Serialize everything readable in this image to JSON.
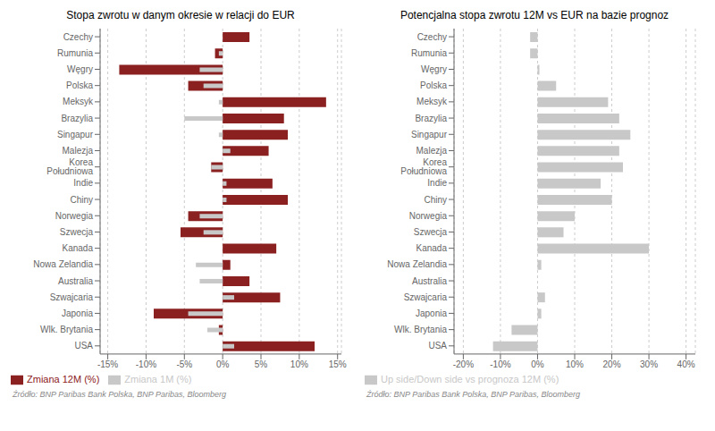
{
  "chart_data": [
    {
      "type": "bar",
      "orientation": "horizontal",
      "title": "Stopa zwrotu w danym okresie w relacji do EUR",
      "categories": [
        "Czechy",
        "Rumunia",
        "Węgry",
        "Polska",
        "Meksyk",
        "Brazylia",
        "Singapur",
        "Malezja",
        "Korea Południowa",
        "Indie",
        "Chiny",
        "Norwegia",
        "Szwecja",
        "Kanada",
        "Nowa Zelandia",
        "Australia",
        "Szwajcaria",
        "Japonia",
        "Wlk. Brytania",
        "USA"
      ],
      "series": [
        {
          "name": "Zmiana 12M (%)",
          "color": "#8b2020",
          "values": [
            3.5,
            -1.0,
            -13.5,
            -4.5,
            13.5,
            8.0,
            8.5,
            6.0,
            -1.5,
            6.5,
            8.5,
            -4.5,
            -5.5,
            7.0,
            1.0,
            3.5,
            7.5,
            -9.0,
            -0.5,
            12.0
          ]
        },
        {
          "name": "Zmiana 1M (%)",
          "color": "#c8c8c8",
          "values": [
            0.0,
            -0.5,
            -3.0,
            -2.5,
            -0.5,
            -5.0,
            -0.5,
            1.0,
            -1.5,
            0.5,
            0.5,
            -3.0,
            -2.5,
            0.0,
            -3.5,
            -3.0,
            1.5,
            -4.5,
            -2.0,
            1.5
          ]
        }
      ],
      "xlim": [
        -16,
        15.5
      ],
      "xticks": [
        {
          "value": -15,
          "label": "-15%"
        },
        {
          "value": -10,
          "label": "-10%"
        },
        {
          "value": -5,
          "label": "-5%"
        },
        {
          "value": 0,
          "label": "0%"
        },
        {
          "value": 5,
          "label": "5%"
        },
        {
          "value": 10,
          "label": "10%"
        },
        {
          "value": 15,
          "label": "15%"
        }
      ],
      "grid": true,
      "legend": "bottom",
      "annotations": [
        "Źródło: BNP Paribas Bank Polska, BNP Paribas, Bloomberg"
      ]
    },
    {
      "type": "bar",
      "orientation": "horizontal",
      "title": "Potencjalna stopa zwrotu 12M vs EUR na bazie prognoz",
      "categories": [
        "Czechy",
        "Rumunia",
        "Węgry",
        "Polska",
        "Meksyk",
        "Brazylia",
        "Singapur",
        "Malezja",
        "Korea Południowa",
        "Indie",
        "Chiny",
        "Norwegia",
        "Szwecja",
        "Kanada",
        "Nowa Zelandia",
        "Australia",
        "Szwajcaria",
        "Japonia",
        "Wlk. Brytania",
        "USA"
      ],
      "series": [
        {
          "name": "Up side/Down side vs prognoza 12M (%)",
          "color": "#c8c8c8",
          "values": [
            -2.0,
            -2.0,
            0.5,
            5.0,
            19.0,
            22.0,
            25.0,
            22.0,
            23.0,
            17.0,
            20.0,
            10.0,
            7.0,
            30.0,
            1.0,
            0.0,
            2.0,
            1.0,
            -7.0,
            -12.0
          ]
        }
      ],
      "xlim": [
        -22.5,
        42.5
      ],
      "xticks": [
        {
          "value": -20,
          "label": "-20%"
        },
        {
          "value": -10,
          "label": "-10%"
        },
        {
          "value": 0,
          "label": "0%"
        },
        {
          "value": 10,
          "label": "10%"
        },
        {
          "value": 20,
          "label": "20%"
        },
        {
          "value": 30,
          "label": "30%"
        },
        {
          "value": 40,
          "label": "40%"
        }
      ],
      "grid": true,
      "legend": "bottom",
      "annotations": [
        "Źródło: BNP Paribas Bank Polska, BNP Paribas, Bloomberg"
      ]
    }
  ]
}
